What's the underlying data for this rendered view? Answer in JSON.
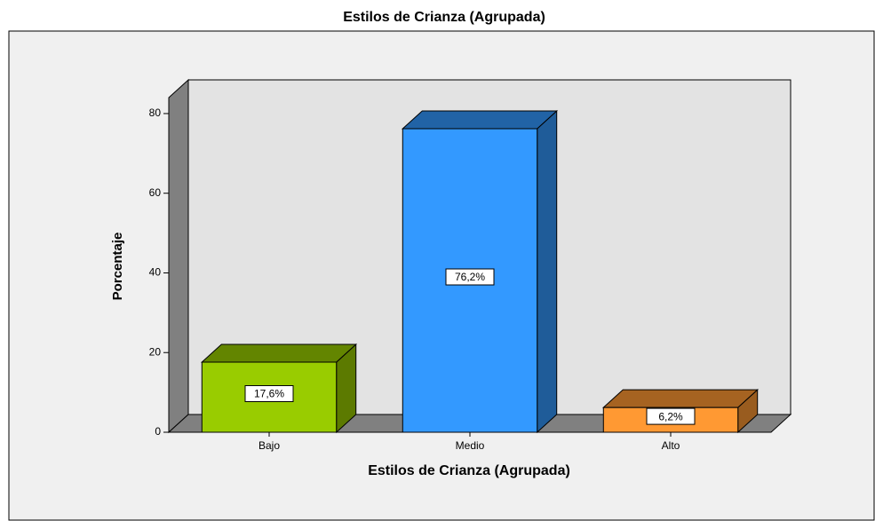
{
  "chart_data": {
    "type": "bar",
    "title": "Estilos de Crianza (Agrupada)",
    "x_label": "Estilos de Crianza (Agrupada)",
    "y_label": "Porcentaje",
    "categories": [
      "Bajo",
      "Medio",
      "Alto"
    ],
    "values": [
      17.6,
      76.2,
      6.2
    ],
    "value_labels": [
      "17,6%",
      "76,2%",
      "6,2%"
    ],
    "colors": [
      "#99cc00",
      "#3399ff",
      "#ff9933"
    ],
    "ylim": [
      0,
      84
    ],
    "yticks": [
      0,
      20,
      40,
      60,
      80
    ],
    "grid": false
  }
}
